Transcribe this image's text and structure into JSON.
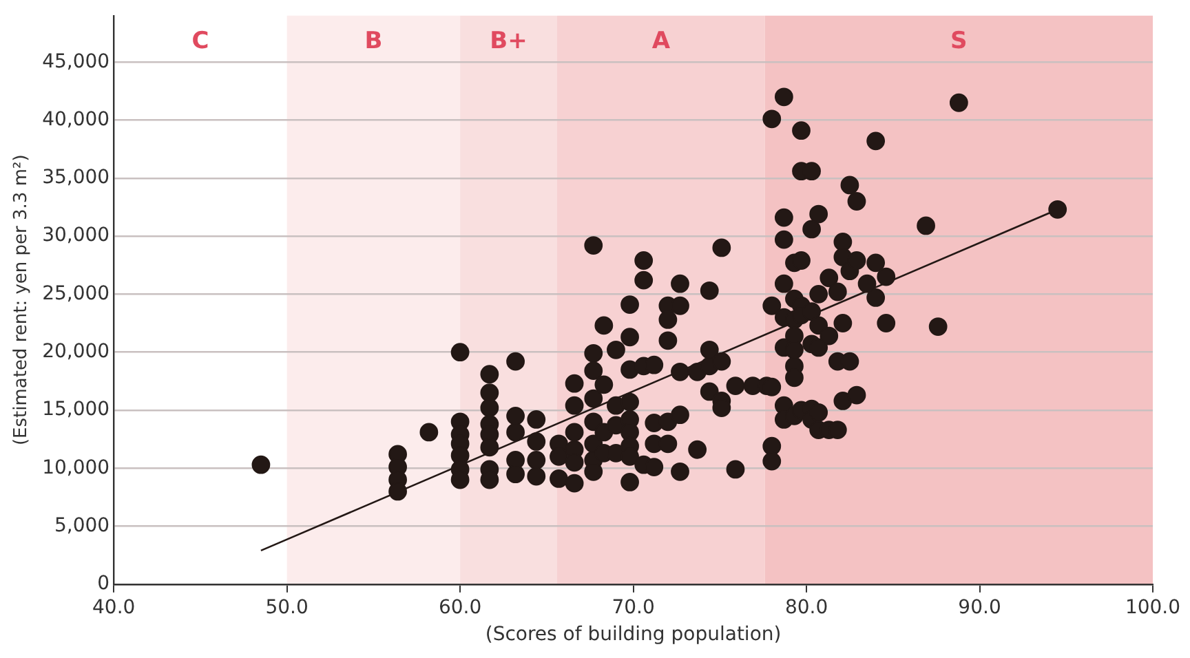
{
  "chart_data": {
    "type": "scatter",
    "xlabel": "(Scores of building population)",
    "ylabel": "(Estimated rent: yen per 3.3 m²)",
    "xlim": [
      40,
      100
    ],
    "xticks": [
      {
        "value": 40,
        "label": "40.0"
      },
      {
        "value": 50,
        "label": "50.0"
      },
      {
        "value": 60,
        "label": "60.0"
      },
      {
        "value": 70,
        "label": "70.0"
      },
      {
        "value": 80,
        "label": "80.0"
      },
      {
        "value": 90,
        "label": "90.0"
      },
      {
        "value": 100,
        "label": "100.0"
      }
    ],
    "ylim": [
      0,
      49000
    ],
    "yticks": [
      0,
      {
        "value": 5000,
        "label": "5,000"
      },
      {
        "value": 10000,
        "label": "10,000"
      },
      {
        "value": 15000,
        "label": "15,000"
      },
      {
        "value": 20000,
        "label": "20,000"
      },
      {
        "value": 25000,
        "label": "25,000"
      },
      {
        "value": 30000,
        "label": "30,000"
      },
      {
        "value": 35000,
        "label": "35,000"
      },
      {
        "value": 40000,
        "label": "40,000"
      },
      {
        "value": 45000,
        "label": "45,000"
      }
    ],
    "grid": "y",
    "legend": false,
    "marker": "circle",
    "annotations": [
      "C"
    ],
    "bands": [
      {
        "axis": "x",
        "from": 50,
        "to": 60,
        "label": "B",
        "color": "#fcecec"
      },
      {
        "axis": "x",
        "from": 60,
        "to": 65.6,
        "label": "B+",
        "color": "#f9dfdf"
      },
      {
        "axis": "x",
        "from": 65.6,
        "to": 77.6,
        "label": "A",
        "color": "#f7d1d2"
      },
      {
        "axis": "x",
        "from": 77.6,
        "to": 100,
        "label": "S",
        "color": "#f4c2c3"
      }
    ],
    "series": [
      {
        "color": "#231815",
        "x": [
          48.5,
          56.4,
          56.4,
          56.4,
          56.4,
          58.2,
          60,
          60,
          60,
          60,
          60,
          60,
          60,
          61.7,
          61.7,
          61.7,
          61.7,
          61.7,
          61.7,
          61.7,
          61.7,
          63.2,
          63.2,
          63.2,
          63.2,
          63.2,
          64.4,
          64.4,
          64.4,
          64.4,
          65.7,
          65.7,
          65.7,
          66.6,
          66.6,
          66.6,
          66.6,
          66.6,
          66.6,
          67.7,
          67.7,
          67.7,
          67.7,
          67.7,
          67.7,
          67.7,
          67.7,
          68.3,
          68.3,
          68.3,
          68.3,
          69,
          69,
          69,
          69,
          69.8,
          69.8,
          69.8,
          69.8,
          69.8,
          69.8,
          69.8,
          69.8,
          69.8,
          70.6,
          70.6,
          70.6,
          70.6,
          71.2,
          71.2,
          71.2,
          71.2,
          72,
          72,
          72,
          72,
          72,
          72.7,
          72.7,
          72.7,
          72.7,
          72.7,
          73.7,
          73.7,
          74.4,
          74.4,
          74.4,
          74.4,
          75.1,
          75.1,
          75.1,
          75.1,
          75.9,
          75.9,
          76.9,
          77.7,
          78,
          78,
          78,
          78,
          78,
          78.7,
          78.7,
          78.7,
          78.7,
          78.7,
          78.7,
          78.7,
          78.7,
          79.3,
          79.3,
          79.3,
          79.3,
          79.3,
          79.3,
          79.3,
          79.3,
          79.7,
          79.7,
          79.7,
          79.7,
          79.7,
          79.7,
          80.3,
          80.3,
          80.3,
          80.3,
          80.3,
          80.3,
          80.7,
          80.7,
          80.7,
          80.7,
          80.7,
          80.7,
          81.3,
          81.3,
          81.3,
          81.8,
          81.8,
          81.8,
          82.1,
          82.1,
          82.1,
          82.1,
          82.5,
          82.5,
          82.5,
          82.9,
          82.9,
          82.9,
          83.5,
          84,
          84,
          84,
          84.6,
          84.6,
          86.9,
          87.6,
          88.8,
          94.5
        ],
        "values": [
          10300,
          11200,
          10100,
          9000,
          8000,
          13100,
          20000,
          14000,
          12900,
          12100,
          11100,
          9900,
          9000,
          18100,
          16500,
          15200,
          13800,
          12900,
          11800,
          9900,
          9000,
          19200,
          14500,
          13100,
          10700,
          9500,
          14200,
          12300,
          10700,
          9300,
          12100,
          11000,
          9100,
          17300,
          15400,
          13100,
          11600,
          10500,
          8700,
          29200,
          19900,
          18400,
          16000,
          14000,
          12100,
          10700,
          9700,
          22300,
          17200,
          13100,
          11300,
          20200,
          15400,
          13700,
          11300,
          24100,
          21300,
          18500,
          15700,
          14200,
          13100,
          11900,
          11000,
          8800,
          27900,
          26200,
          18800,
          10300,
          18900,
          13900,
          12100,
          10100,
          24000,
          22800,
          21000,
          14000,
          12100,
          25900,
          24000,
          18300,
          14600,
          9700,
          18300,
          11600,
          25300,
          20200,
          18800,
          16600,
          29000,
          19200,
          15800,
          15200,
          17100,
          9900,
          17100,
          17100,
          40100,
          24000,
          17000,
          11900,
          10600,
          42000,
          31600,
          29700,
          25900,
          23000,
          20400,
          15400,
          14200,
          27700,
          24600,
          22800,
          21400,
          20200,
          18800,
          17800,
          14500,
          39100,
          35600,
          27900,
          24000,
          23200,
          15000,
          35600,
          30600,
          23500,
          20700,
          15100,
          14200,
          31900,
          25000,
          22300,
          20400,
          14800,
          13300,
          26400,
          21400,
          13300,
          25200,
          19200,
          13300,
          29500,
          28200,
          22500,
          15800,
          34400,
          27000,
          19200,
          33000,
          27900,
          16300,
          25900,
          38200,
          27700,
          24700,
          26500,
          22500,
          30900,
          22200,
          41500,
          32300
        ]
      },
      {
        "type": "line",
        "color": "#231815",
        "marker": "none",
        "x": [
          48.5,
          94.5
        ],
        "values": [
          2900,
          32300
        ]
      }
    ]
  }
}
